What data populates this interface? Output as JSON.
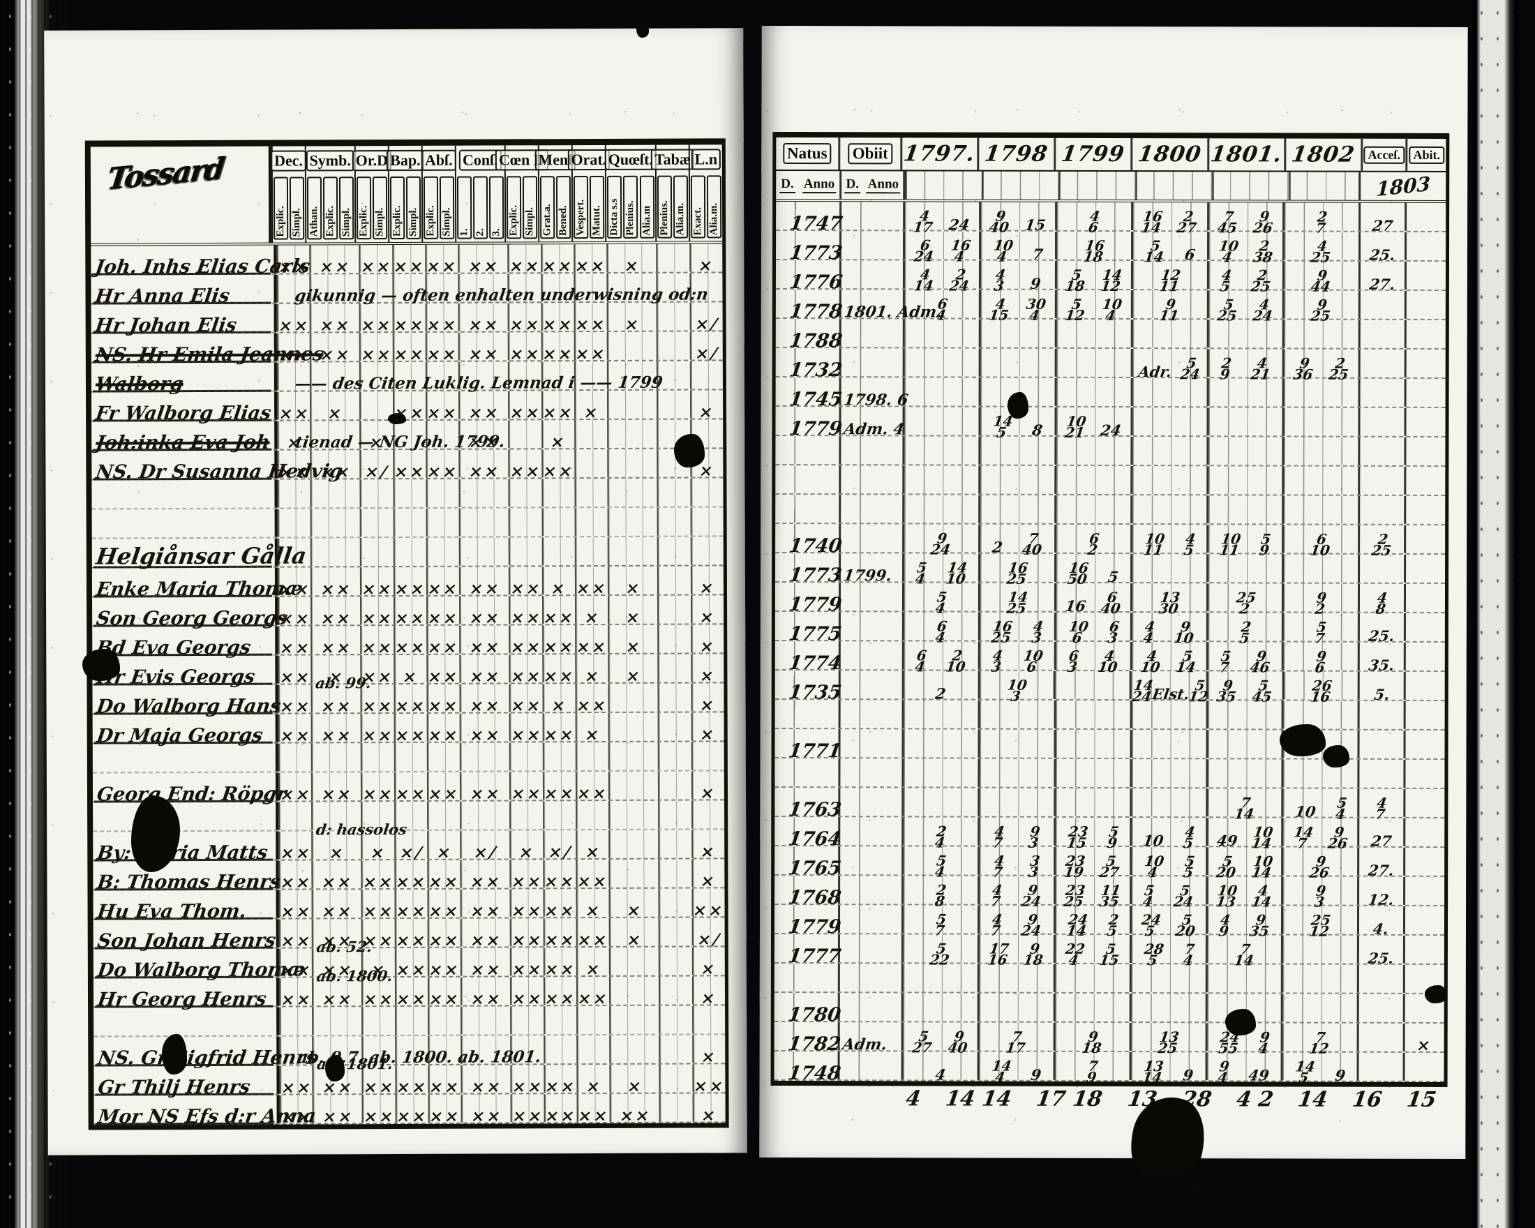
{
  "left_page": {
    "corner_label": "Tossard",
    "columns": [
      {
        "label": "Dec.",
        "subs": [
          "Explic.",
          "Simpl."
        ]
      },
      {
        "label": "Symb.",
        "subs": [
          "Athan.",
          "Explic.",
          "Simpl."
        ]
      },
      {
        "label": "Or.D",
        "subs": [
          "Explic.",
          "Simpl."
        ]
      },
      {
        "label": "Bap.",
        "subs": [
          "Explic.",
          "Simpl."
        ]
      },
      {
        "label": "Abſ.",
        "subs": [
          "Explic.",
          "Simpl."
        ]
      },
      {
        "label": "Conſ.",
        "subs": [
          "1.",
          "2.",
          "3."
        ]
      },
      {
        "label": "Cœn D",
        "subs": [
          "Explic.",
          "Simpl."
        ]
      },
      {
        "label": "Menſ",
        "subs": [
          "Grat.a.",
          "Bened."
        ]
      },
      {
        "label": "Orat.",
        "subs": [
          "Vespert.",
          "Matut."
        ]
      },
      {
        "label": "Quœſt.",
        "subs": [
          "Dicta s.s",
          "Plenius.",
          "Alia.m"
        ]
      },
      {
        "label": "Tabæ",
        "subs": [
          "Plenius.",
          "Alia.m."
        ]
      },
      {
        "label": "L.n",
        "subs": [
          "Exact.",
          "Alia.m."
        ]
      }
    ]
  },
  "right_page": {
    "natus_label": "Natus",
    "obiit_label": "Obiit",
    "sub_d": "D.",
    "sub_anno": "Anno",
    "years": [
      "1797.",
      "1798",
      "1799",
      "1800",
      "1801.",
      "1802"
    ],
    "accessit_label": "Acceſ.",
    "abiit_label": "Abit.",
    "year_note": "1803",
    "totals": [
      "4",
      "14 14",
      "17 18",
      "13",
      "28",
      "4 2",
      "14",
      "16",
      "15"
    ]
  },
  "rows": [
    {
      "kind": "entry",
      "name": "Joh. Inhs Elias Carls",
      "marks": "xx xx xx xx xx xx xx xx xx x . x",
      "natus": "1747",
      "obiit": "",
      "y": [
        "4/17 24",
        "9/40 15",
        "4/6",
        "16/14 2/27",
        "7/45 9/26",
        "2/7"
      ],
      "acc": "27",
      "ab": ""
    },
    {
      "kind": "entry",
      "name": "Hr Anna Elis",
      "marks": ". . . . . . . . . . . .",
      "note": "gikunnig — often enhalten underwisning od:n",
      "natus": "1773",
      "obiit": "",
      "y": [
        "6/24 16/4",
        "10/4 7",
        "16/18",
        "5/14 6",
        "10/4 2/38",
        "4/25"
      ],
      "acc": "25.",
      "ab": ""
    },
    {
      "kind": "entry",
      "name": "Hr Johan Elis",
      "marks": "xx xx xx xx xx xx xx xx xx x . x/",
      "natus": "1776",
      "obiit": "",
      "y": [
        "4/14 2/24",
        "4/3 9",
        "5/18 14/12",
        "12/11",
        "4/5 2/25",
        "9/44"
      ],
      "acc": "27.",
      "ab": ""
    },
    {
      "kind": "entry",
      "name": "NS. Hr Emila Jeannes",
      "struck": true,
      "marks": "xx xx xx xx xx xx xx xx xx . . x/",
      "natus": "1778",
      "obiit": "1801. Adm.",
      "y": [
        "6/4",
        "4/15 30/4",
        "5/12 10/4",
        "9/11",
        "5/25 4/24",
        "9/25"
      ],
      "acc": "",
      "ab": ""
    },
    {
      "kind": "entry",
      "name": "Walborg",
      "struck": true,
      "marks": ". . . . . . . . . . . .",
      "note": "—— des Citen Luklig.  Lemnad i —— 1799",
      "natus": "1788",
      "obiit": "",
      "y": [
        "",
        "",
        "",
        "",
        "",
        ""
      ],
      "acc": "",
      "ab": ""
    },
    {
      "kind": "entry",
      "name": "Fr Walborg Elias",
      "marks": "xx x . xx xx xx xx xx x . . x",
      "natus": "1732",
      "obiit": "",
      "y": [
        "",
        "",
        "",
        "Adr. 5/24",
        "2/9 4/21",
        "9/36 2/25"
      ],
      "acc": "",
      "ab": ""
    },
    {
      "kind": "entry",
      "name": "Joh:inka Eva Joh",
      "struck": true,
      "marks": "x . x . . xx . x . . . .",
      "note": "tienad — NG Joh. 1799.",
      "natus": "1745",
      "obiit": "1798. 6",
      "y": [
        "",
        "",
        "",
        "",
        "",
        ""
      ],
      "acc": "",
      "ab": ""
    },
    {
      "kind": "entry",
      "name": "NS. Dr Susanna Hedvig",
      "marks": "xx xx x/ xx xx xx xx xx . . . x",
      "natus": "1779",
      "obiit": "Adm. 4",
      "y": [
        "",
        "14/5 8",
        "10/21 24",
        "",
        "",
        ""
      ],
      "acc": "",
      "ab": ""
    },
    {
      "kind": "gap"
    },
    {
      "kind": "gap"
    },
    {
      "kind": "heading",
      "name": "Helgiånsar Gålla"
    },
    {
      "kind": "entry",
      "name": "Enke Maria Thomæ",
      "marks": "xx xx xx xx xx xx xx x xx x . x",
      "natus": "1740",
      "obiit": "",
      "y": [
        "9/24",
        "2 7/40",
        "6/2",
        "10/11 4/5",
        "10/11 5/9",
        "6/10"
      ],
      "acc": "2/25",
      "ab": ""
    },
    {
      "kind": "entry",
      "name": "Son Georg Georgs",
      "marks": "xx xx xx xx xx xx xx xx x x . x",
      "natus": "1773",
      "obiit": "1799.",
      "y": [
        "5/4 14/10",
        "16/25",
        "16/50 5",
        "",
        "",
        ""
      ],
      "acc": "",
      "ab": ""
    },
    {
      "kind": "entry",
      "name": "Bd Eva Georgs",
      "marks": "xx xx xx xx xx xx xx xx xx x . x",
      "natus": "1779",
      "obiit": "",
      "y": [
        "5/4",
        "14/25",
        "16 6/40",
        "13/30",
        "25/2",
        "9/2"
      ],
      "acc": "4/8",
      "ab": ""
    },
    {
      "kind": "entry",
      "name": "Hr Evis Georgs",
      "marks": "xx x xx x xx xx xx xx x x . x",
      "natus": "1775",
      "obiit": "",
      "y": [
        "6/4",
        "16/25 4/3",
        "10/6 6/3",
        "4/4 9/10",
        "2/5",
        "5/7"
      ],
      "acc": "25.",
      "ab": ""
    },
    {
      "kind": "entry",
      "name": "Do Walborg Hans",
      "note_above": "ab. 99.",
      "marks": "xx xx xx xx xx xx xx x xx . . x",
      "natus": "1774",
      "obiit": "",
      "y": [
        "6/4 2/10",
        "4/3 10/6",
        "6/3 4/10",
        "4/10 5/14",
        "5/7 9/46",
        "9/6"
      ],
      "acc": "35.",
      "ab": ""
    },
    {
      "kind": "entry",
      "name": "Dr Maja Georgs",
      "marks": "xx xx xx xx xx xx xx xx x . . x",
      "natus": "1735",
      "obiit": "",
      "y": [
        "2",
        "10/3",
        "",
        "14/24 Elst. 5/12",
        "9/35 5/45",
        "26/16"
      ],
      "acc": "5.",
      "ab": ""
    },
    {
      "kind": "gap"
    },
    {
      "kind": "entry",
      "name": "Georg End: Röpgr",
      "marks": "xx xx xx xx xx xx xx xx xx . . x",
      "natus": "1771",
      "obiit": "",
      "y": [
        "",
        "",
        "",
        "",
        "",
        ""
      ],
      "acc": "",
      "ab": ""
    },
    {
      "kind": "gap"
    },
    {
      "kind": "entry",
      "name": "By: Maria Matts",
      "note_above": "d: hassolos",
      "marks": "xx x x x/ x x/ x x/ x . . x",
      "natus": "1763",
      "obiit": "",
      "y": [
        "",
        "",
        "",
        "",
        "7/14",
        "10 5/4"
      ],
      "acc": "4/7",
      "ab": ""
    },
    {
      "kind": "entry",
      "name": "B: Thomas Henrs",
      "marks": "xx xx xx xx xx xx xx xx xx . . x",
      "natus": "1764",
      "obiit": "",
      "y": [
        "2/4",
        "4/7 9/3",
        "23/15 5/9",
        "10 4/5",
        "49 10/14",
        "14/7 9/26"
      ],
      "acc": "27",
      "ab": ""
    },
    {
      "kind": "entry",
      "name": "Hu Eva Thom.",
      "marks": "xx xx xx xx xx xx xx xx x x . xx",
      "natus": "1765",
      "obiit": "",
      "y": [
        "5/4",
        "4/7 3/3",
        "23/19 5/27",
        "10/4 5/5",
        "5/20 10/14",
        "9/26"
      ],
      "acc": "27.",
      "ab": ""
    },
    {
      "kind": "entry",
      "name": "Son Johan Henrs",
      "marks": "xx xx xx xx xx xx xx xx xx x . x/",
      "natus": "1768",
      "obiit": "",
      "y": [
        "2/8",
        "4/7 9/24",
        "23/25 11/35",
        "5/4 5/24",
        "10/13 4/14",
        "9/3"
      ],
      "acc": "12.",
      "ab": ""
    },
    {
      "kind": "entry",
      "name": "Do Walborg Thomæ",
      "note_above": "ab. 52.",
      "marks": "xx xx x xx xx xx xx xx x . . x",
      "natus": "1779",
      "obiit": "",
      "y": [
        "5/7",
        "4/7 9/24",
        "24/14 2/5",
        "24/5 5/20",
        "4/9 9/35",
        "25/12"
      ],
      "acc": "4.",
      "ab": ""
    },
    {
      "kind": "entry",
      "name": "Hr Georg Henrs",
      "note_above": "ab. 1800.",
      "marks": "xx xx xx xx xx xx xx xx xx . . x",
      "natus": "1777",
      "obiit": "",
      "y": [
        "5/22",
        "17/16 9/18",
        "22/4 5/15",
        "28/5 7/4",
        "7/14",
        ""
      ],
      "acc": "25.",
      "ab": ""
    },
    {
      "kind": "gap"
    },
    {
      "kind": "entry",
      "name": "NS. Gr Sigfrid Henrs",
      "note": "ab. 9.7.    ab. 1800.    ab. 1801.",
      "marks": ". . . . . . . . . . . x",
      "natus": "1780",
      "obiit": "",
      "y": [
        "",
        "",
        "",
        "",
        "",
        ""
      ],
      "acc": "",
      "ab": ""
    },
    {
      "kind": "entry",
      "name": "Gr Thilj Henrs",
      "note_above": "ab. 1801.",
      "marks": "xx xx xx xx xx xx xx xx x x . xx",
      "natus": "1782",
      "obiit": "Adm.",
      "y": [
        "5/27 9/40",
        "7/17",
        "9/18",
        "13/25",
        "24/55 9/4",
        "7/12"
      ],
      "acc": "",
      "ab": "X"
    },
    {
      "kind": "entry",
      "name": "Mor NS Efs d:r Anna",
      "marks": "xx xx xx xx xx xx xx xx xx xx . x",
      "natus": "1748",
      "obiit": "",
      "y": [
        "4",
        "14/4 9",
        "7/9",
        "13/14 9",
        "9/4 49",
        "14/5 9"
      ],
      "acc": "",
      "ab": ""
    }
  ]
}
